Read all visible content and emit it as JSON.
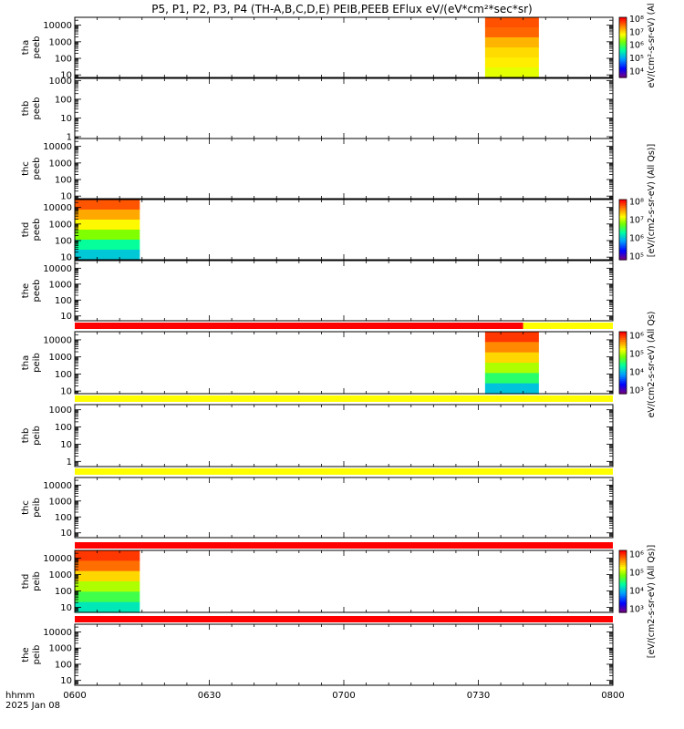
{
  "title": "P5, P1, P2, P3, P4 (TH-A,B,C,D,E) PEIB,PEEB EFlux eV/(eV*cm²*sec*sr)",
  "footer": {
    "time_label": "hhmm",
    "date_label": "2025 Jan 08"
  },
  "x_axis": {
    "ticks": [
      "0600",
      "0630",
      "0700",
      "0730",
      "0800"
    ],
    "range_minutes": [
      0,
      120
    ]
  },
  "colorbar_labels": {
    "top": "eV/(cm²-s-sr-eV) (Al",
    "peeb_mid": "[eV/(cm2-s-sr-eV) (All Qs)]",
    "peib_mid": "eV/(cm2-s-sr-eV) (All Qs)",
    "peib_bottom": "[eV/(cm2-s-sr-eV) (All Qs)]"
  },
  "chart_data": {
    "type": "heatmap",
    "yscale": "log",
    "x_unit": "minutes after 0600 UT",
    "panels": [
      {
        "probe": "tha",
        "product": "peeb",
        "ylim": [
          7,
          30000
        ],
        "yticks": [
          "10",
          "100",
          "1000",
          "10000"
        ],
        "blocks": [
          {
            "x": [
              91.5,
              103.5
            ],
            "ymin": 7,
            "ymax": 30000,
            "levels": [
              7.7,
              7.6,
              7.2,
              7.0,
              6.9,
              6.7
            ]
          }
        ]
      },
      {
        "probe": "thb",
        "product": "peeb",
        "ylim": [
          0.8,
          1300
        ],
        "yticks": [
          "1",
          "10",
          "100",
          "1000"
        ],
        "blocks": []
      },
      {
        "probe": "thc",
        "product": "peeb",
        "ylim": [
          7,
          30000
        ],
        "yticks": [
          "10",
          "100",
          "1000",
          "10000"
        ],
        "blocks": []
      },
      {
        "probe": "thd",
        "product": "peeb",
        "ylim": [
          7,
          30000
        ],
        "yticks": [
          "10",
          "100",
          "1000",
          "10000"
        ],
        "blocks": [
          {
            "x": [
              0,
              14.5
            ],
            "ymin": 7,
            "ymax": 30000,
            "levels": [
              7.8,
              7.5,
              7.2,
              6.8,
              6.3,
              6.0
            ]
          }
        ]
      },
      {
        "probe": "the",
        "product": "peeb",
        "ylim": [
          5,
          30000
        ],
        "yticks": [
          "10",
          "100",
          "1000",
          "10000"
        ],
        "blocks": []
      },
      {
        "probe": "tha",
        "product": "peib",
        "ylim": [
          7,
          30000
        ],
        "yticks": [
          "10",
          "100",
          "1000",
          "10000"
        ],
        "blocks": [
          {
            "x": [
              91.5,
              103.5
            ],
            "ymin": 7,
            "ymax": 30000,
            "levels": [
              6.0,
              5.7,
              5.4,
              5.0,
              4.5,
              4.0
            ]
          }
        ]
      },
      {
        "probe": "thb",
        "product": "peib",
        "ylim": [
          0.5,
          2000
        ],
        "yticks": [
          "1",
          "10",
          "100",
          "1000"
        ],
        "blocks": []
      },
      {
        "probe": "thc",
        "product": "peib",
        "ylim": [
          5,
          30000
        ],
        "yticks": [
          "10",
          "100",
          "1000",
          "10000"
        ],
        "blocks": []
      },
      {
        "probe": "thd",
        "product": "peib",
        "ylim": [
          5,
          30000
        ],
        "yticks": [
          "10",
          "100",
          "1000",
          "10000"
        ],
        "blocks": [
          {
            "x": [
              0,
              14.5
            ],
            "ymin": 5,
            "ymax": 30000,
            "levels": [
              6.0,
              5.8,
              5.4,
              5.0,
              4.6,
              4.2
            ]
          }
        ]
      },
      {
        "probe": "the",
        "product": "peib",
        "ylim": [
          5,
          30000
        ],
        "yticks": [
          "10",
          "100",
          "1000",
          "10000"
        ],
        "blocks": []
      }
    ],
    "bars": [
      {
        "after_panel": 4,
        "segments": [
          {
            "x": [
              0,
              100
            ],
            "color": "#ff0000"
          },
          {
            "x": [
              100,
              120
            ],
            "color": "#ffff00"
          }
        ]
      },
      {
        "after_panel": 5,
        "segments": [
          {
            "x": [
              0,
              120
            ],
            "color": "#ffff00"
          }
        ]
      },
      {
        "after_panel": 6,
        "segments": [
          {
            "x": [
              0,
              120
            ],
            "color": "#ffff00"
          }
        ]
      },
      {
        "after_panel": 7,
        "segments": [
          {
            "x": [
              0,
              120
            ],
            "color": "#ff0000"
          }
        ]
      },
      {
        "after_panel": 8,
        "segments": [
          {
            "x": [
              0,
              120
            ],
            "color": "#ff0000"
          }
        ]
      }
    ],
    "colorbars": [
      {
        "panel": 0,
        "labels": [
          "10⁸",
          "10⁷",
          "10⁶",
          "10⁵",
          "10⁴"
        ],
        "exps": [
          8,
          7,
          6,
          5,
          4
        ],
        "range": [
          3.5,
          8.1
        ]
      },
      {
        "panel": 3,
        "labels": [
          "10⁸",
          "10⁷",
          "10⁶",
          "10⁵"
        ],
        "exps": [
          8,
          7,
          6,
          5
        ],
        "range": [
          4.8,
          8.1
        ]
      },
      {
        "panel": 5,
        "labels": [
          "10⁶",
          "10⁵",
          "10⁴",
          "10³"
        ],
        "exps": [
          6,
          5,
          4,
          3
        ],
        "range": [
          2.8,
          6.2
        ]
      },
      {
        "panel": 8,
        "labels": [
          "10⁶",
          "10⁵",
          "10⁴",
          "10³"
        ],
        "exps": [
          6,
          5,
          4,
          3
        ],
        "range": [
          2.8,
          6.2
        ]
      }
    ]
  }
}
